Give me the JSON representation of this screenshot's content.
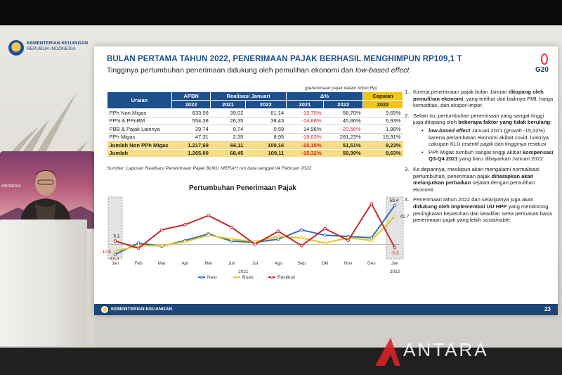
{
  "ministry": {
    "name": "KEMENTERIAN KEUANGAN",
    "sub": "REPUBLIK INDONESIA"
  },
  "screen_label": "INDONESIA",
  "slide": {
    "title": "BULAN PERTAMA TAHUN 2022, PENERIMAAN PAJAK BERHASIL MENGHIMPUN RP109,1 T",
    "subtitle_plain": "Tingginya pertumbuhan penerimaan didukung oleh pemulihan ekonomi dan ",
    "subtitle_italic": "low-based effect",
    "g20": "G20",
    "table_note": "(penerimaan pajak dalam triliun Rp)",
    "table": {
      "headers": {
        "uraian": "Uraian",
        "apbn": "APBN",
        "realisasi": "Realisasi Januari",
        "delta": "Δ%",
        "capaian": "Capaian",
        "y2022a": "2022",
        "y2021a": "2021",
        "y2022b": "2022",
        "y2021b": "2021",
        "y2022c": "2022",
        "y2022d": "2022"
      },
      "rows": [
        {
          "name": "PPh Non Migas",
          "apbn": "633,56",
          "r2021": "39,02",
          "r2022": "61,14",
          "d2021": "-15,75%",
          "d2022": "56,70%",
          "cap": "9,65%"
        },
        {
          "name": "PPN & PPnBM",
          "apbn": "554,38",
          "r2021": "26,35",
          "r2022": "38,43",
          "d2021": "-14,88%",
          "d2022": "45,86%",
          "cap": "6,93%"
        },
        {
          "name": "PBB & Pajak Lainnya",
          "apbn": "29,74",
          "r2021": "0,74",
          "r2022": "0,59",
          "d2021": "14,96%",
          "d2022": "-20,56%",
          "cap": "1,98%"
        },
        {
          "name": "PPh Migas",
          "apbn": "47,31",
          "r2021": "2,35",
          "r2022": "8,95",
          "d2021": "-19,83%",
          "d2022": "281,23%",
          "cap": "18,91%"
        },
        {
          "name": "Jumlah Non PPh Migas",
          "apbn": "1.217,69",
          "r2021": "66,11",
          "r2022": "100,16",
          "d2021": "-15,15%",
          "d2022": "51,51%",
          "cap": "8,23%"
        },
        {
          "name": "Jumlah",
          "apbn": "1.265,00",
          "r2021": "68,45",
          "r2022": "109,11",
          "d2021": "-15,32%",
          "d2022": "59,39%",
          "cap": "8,63%"
        }
      ]
    },
    "table_source": "Sumber: Laporan Realisasi Penerimaan Pajak BUKU MERAH run data tanggal 04 Februari 2022",
    "bullets": [
      {
        "num": "1.",
        "parts": [
          "Kinerja penerimaan pajak bulan Januari ",
          "ditopang oleh pemulihan ekonomi",
          ", yang terlihat dari baiknya PMI, harga komoditas, dan ekspor-impor."
        ]
      },
      {
        "num": "2.",
        "parts": [
          "Selain itu, pertumbuhan penerimaan yang sangat tinggi juga ditopang oleh ",
          "beberapa faktor yang tidak berulang",
          ":"
        ]
      },
      {
        "num": "3.",
        "parts": [
          "Ke depannya, meskipun akan mengalami normalisasi pertumbuhan, penerimaan pajak ",
          "diharapkan akan melanjutkan perbaikan",
          " sejalan dengan pemulihan ekonomi."
        ]
      },
      {
        "num": "4.",
        "parts": [
          "Penerimaan tahun 2022 dan selanjutnya juga akan ",
          "didukung oleh implementasi UU HPP",
          " yang mendorong peningkatan kepatuhan dan keadilan serta perluasan basis penerimaan pajak yang lebih ",
          "sustainable",
          "."
        ]
      }
    ],
    "sub_bullets": [
      {
        "parts": [
          "low-based effect",
          " Januari 2021 (",
          "growth",
          " -15,32%) karena perlambatan ekonomi akibat covid, luasnya cakupan KLU insentif pajak dan tingginya restitusi"
        ]
      },
      {
        "parts": [
          "PPh Migas tumbuh sangat tinggi akibat ",
          "kompensasi Q3-Q4 2021",
          " yang baru dibayarkan Januari 2022"
        ]
      }
    ],
    "footer_text": "KEMENTERIAN KEUANGAN",
    "page_number": "23"
  },
  "watermark": "ANTARA",
  "chart_data": {
    "type": "line",
    "title": "Pertumbuhan Penerimaan Pajak",
    "categories": [
      "Jan",
      "Feb",
      "Mar",
      "Apr",
      "Mei",
      "Jun",
      "Jul",
      "Ags",
      "Sep",
      "Okt",
      "Nov",
      "Des",
      "Jan"
    ],
    "year_labels": [
      "2021",
      "2022"
    ],
    "series": [
      {
        "name": "Neto",
        "color": "#2e6fb8",
        "values": [
          -15.3,
          2,
          -3,
          6,
          16,
          5,
          3,
          8,
          22,
          14,
          12,
          10,
          59.4
        ]
      },
      {
        "name": "Bruto",
        "color": "#e8c21a",
        "values": [
          -10.6,
          -2,
          -2,
          4,
          14,
          8,
          4,
          12,
          10,
          2,
          10,
          6,
          42.7
        ]
      },
      {
        "name": "Restitusi",
        "color": "#c62828",
        "values": [
          5.1,
          -6,
          22,
          30,
          44,
          26,
          0,
          20,
          -2,
          24,
          6,
          62,
          -5.3
        ]
      }
    ],
    "data_labels": {
      "neto_last": "59,4",
      "bruto_last": "42,7",
      "restitusi_first": "5,1",
      "restitusi_last": "-5,3",
      "bruto_first": "-10,6",
      "neto_first": "-15,3"
    },
    "ylim": [
      -20,
      70
    ],
    "legend": "bottom"
  }
}
